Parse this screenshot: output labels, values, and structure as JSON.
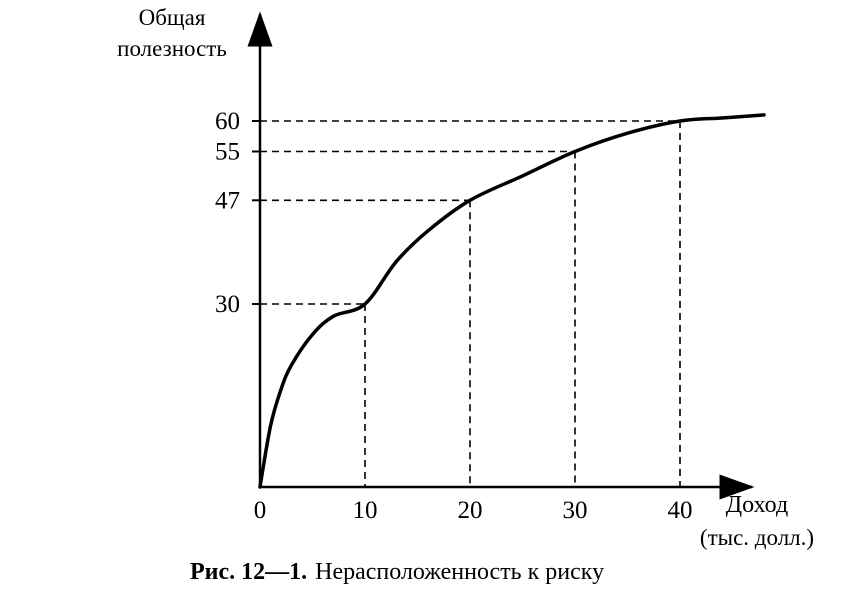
{
  "chart_data": {
    "type": "line",
    "ylabel": [
      "Общая",
      "полезность"
    ],
    "xlabel": [
      "Доход",
      "(тыс. долл.)"
    ],
    "caption_bold": "Рис. 12—1.",
    "caption_text": "Нерасположенность к риску",
    "xlim": [
      0,
      48
    ],
    "ylim": [
      0,
      63
    ],
    "x_ticks": [
      0,
      10,
      20,
      30,
      40
    ],
    "y_ticks": [
      30,
      47,
      55,
      60
    ],
    "grid": false,
    "series": [
      {
        "x": [
          0,
          1,
          2,
          3,
          5,
          7,
          10,
          13,
          16,
          20,
          25,
          30,
          35,
          40,
          44,
          48
        ],
        "y": [
          0,
          10,
          16,
          20,
          25,
          28,
          30,
          37,
          42,
          47,
          51,
          55,
          58,
          60,
          60.5,
          61
        ],
        "style": "solid",
        "color": "#000000"
      }
    ],
    "reference_points": [
      {
        "x": 10,
        "y": 30
      },
      {
        "x": 20,
        "y": 47
      },
      {
        "x": 30,
        "y": 55
      },
      {
        "x": 40,
        "y": 60
      }
    ]
  }
}
